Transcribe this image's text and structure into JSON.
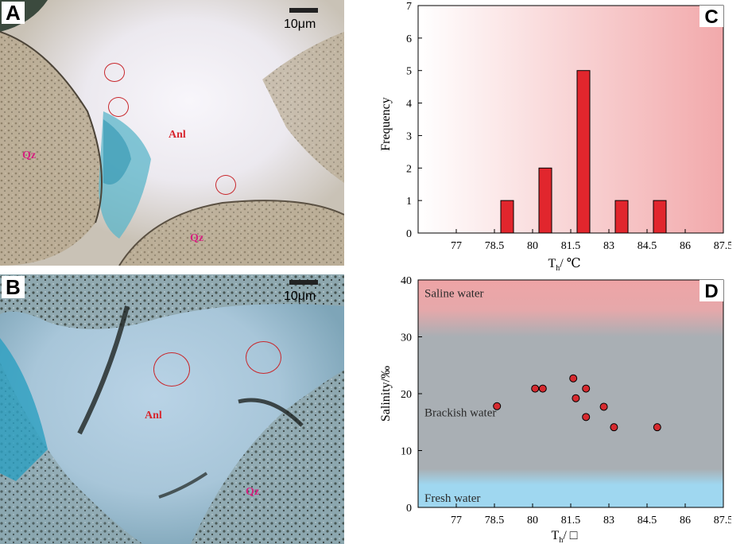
{
  "panels": {
    "A": {
      "letter": "A",
      "scale": "10μm",
      "labels": {
        "anl": "Anl",
        "qz1": "Qz",
        "qz2": "Qz"
      }
    },
    "B": {
      "letter": "B",
      "scale": "10μm",
      "labels": {
        "anl": "Anl",
        "qz": "Qz"
      }
    },
    "C": {
      "letter": "C"
    },
    "D": {
      "letter": "D"
    }
  },
  "colors": {
    "bar_fill": "#e1262d",
    "point_fill": "#d62a2f",
    "saline": "#eea4a6",
    "brackish": "#a9afb4",
    "fresh": "#9fd7f0",
    "panel_c_gradient_end": "#f2a9ab"
  },
  "chart_data": [
    {
      "type": "bar",
      "panel": "C",
      "xlabel_main": "T",
      "xlabel_sub": "h",
      "xlabel_unit": "/ ℃",
      "ylabel": "Frequency",
      "xlim": [
        75.5,
        87.5
      ],
      "ylim": [
        0,
        7
      ],
      "xticks": [
        "77",
        "78.5",
        "80",
        "81.5",
        "83",
        "84.5",
        "86",
        "87.5"
      ],
      "yticks": [
        "0",
        "1",
        "2",
        "3",
        "4",
        "5",
        "6",
        "7"
      ],
      "bars": [
        {
          "x": 79.0,
          "value": 1
        },
        {
          "x": 80.5,
          "value": 2
        },
        {
          "x": 82.0,
          "value": 5
        },
        {
          "x": 83.5,
          "value": 1
        },
        {
          "x": 85.0,
          "value": 1
        }
      ],
      "bar_width": 0.5,
      "background": "horizontal gradient white to pink"
    },
    {
      "type": "scatter",
      "panel": "D",
      "xlabel_main": "T",
      "xlabel_sub": "h",
      "xlabel_unit": "/ □",
      "ylabel": "Salinity/‰",
      "xlim": [
        75.5,
        87.5
      ],
      "ylim": [
        0,
        40
      ],
      "xticks": [
        "77",
        "78.5",
        "80",
        "81.5",
        "83",
        "84.5",
        "86",
        "87.5"
      ],
      "yticks": [
        "0",
        "10",
        "20",
        "30",
        "40"
      ],
      "zones": [
        {
          "label": "Saline water",
          "from": 30,
          "to": 40
        },
        {
          "label": "Brackish water",
          "from": 5,
          "to": 30
        },
        {
          "label": "Fresh water",
          "from": 0,
          "to": 5
        }
      ],
      "points": [
        {
          "x": 78.6,
          "y": 17.8
        },
        {
          "x": 80.1,
          "y": 20.9
        },
        {
          "x": 80.4,
          "y": 20.9
        },
        {
          "x": 81.6,
          "y": 22.7
        },
        {
          "x": 81.7,
          "y": 19.2
        },
        {
          "x": 82.1,
          "y": 20.9
        },
        {
          "x": 82.1,
          "y": 15.9
        },
        {
          "x": 82.8,
          "y": 17.7
        },
        {
          "x": 83.2,
          "y": 14.1
        },
        {
          "x": 84.9,
          "y": 14.1
        }
      ]
    }
  ]
}
